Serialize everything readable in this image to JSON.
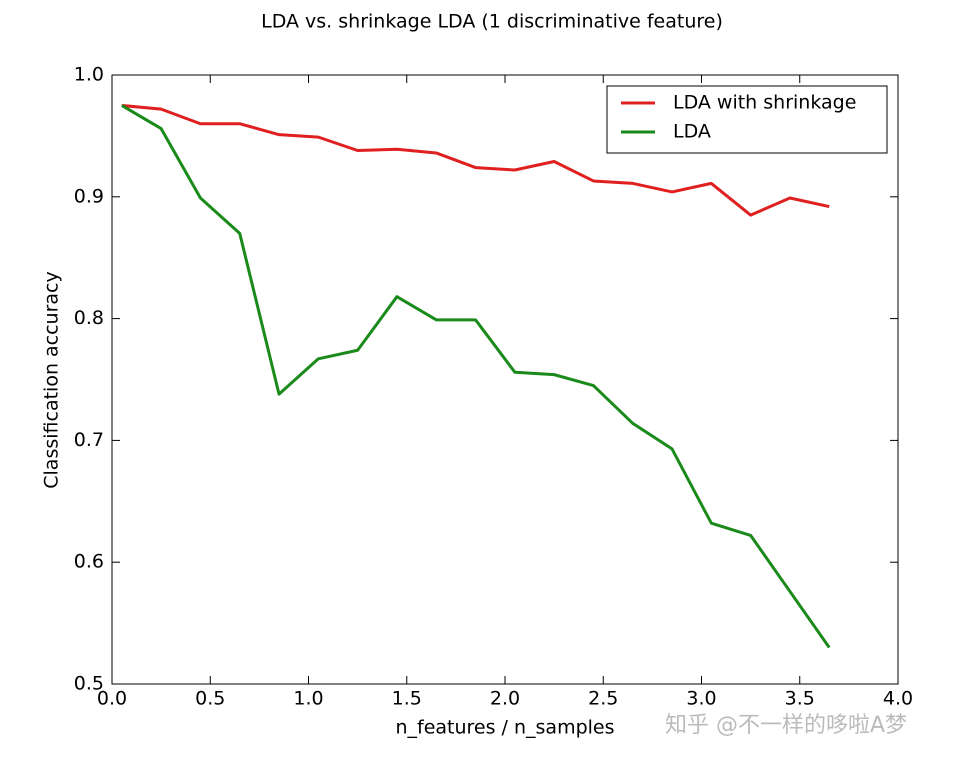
{
  "chart_data": {
    "type": "line",
    "title": "LDA vs. shrinkage LDA (1 discriminative feature)",
    "x_label": "n_features / n_samples",
    "y_label": "Classification accuracy",
    "watermark": "知乎 @不一样的哆啦A梦",
    "x": [
      0.05,
      0.25,
      0.45,
      0.65,
      0.85,
      1.05,
      1.25,
      1.45,
      1.65,
      1.85,
      2.05,
      2.25,
      2.45,
      2.65,
      2.85,
      3.05,
      3.25,
      3.45,
      3.65
    ],
    "series": [
      {
        "name": "LDA with shrinkage",
        "color": "#e02020",
        "values": [
          0.975,
          0.972,
          0.96,
          0.96,
          0.951,
          0.949,
          0.938,
          0.939,
          0.936,
          0.924,
          0.922,
          0.929,
          0.913,
          0.911,
          0.904,
          0.911,
          0.885,
          0.899,
          0.892
        ]
      },
      {
        "name": "LDA",
        "color": "#1a8a1a",
        "values": [
          0.975,
          0.956,
          0.899,
          0.87,
          0.738,
          0.767,
          0.774,
          0.818,
          0.799,
          0.799,
          0.756,
          0.754,
          0.745,
          0.714,
          0.693,
          0.632,
          0.622,
          0.576,
          0.53
        ]
      }
    ],
    "xlim": [
      0,
      4
    ],
    "ylim": [
      0.5,
      1
    ],
    "xticks": [
      {
        "value": 0,
        "label": "0.0"
      },
      0.5,
      {
        "value": 1,
        "label": "1.0"
      },
      1.5,
      {
        "value": 2,
        "label": "2.0"
      },
      2.5,
      {
        "value": 3,
        "label": "3.0"
      },
      3.5,
      {
        "value": 4,
        "label": "4.0"
      }
    ],
    "yticks": [
      0.5,
      0.6,
      0.7,
      0.8,
      0.9,
      {
        "value": 1,
        "label": "1.0"
      }
    ],
    "legend": "upper right",
    "grid": false
  }
}
